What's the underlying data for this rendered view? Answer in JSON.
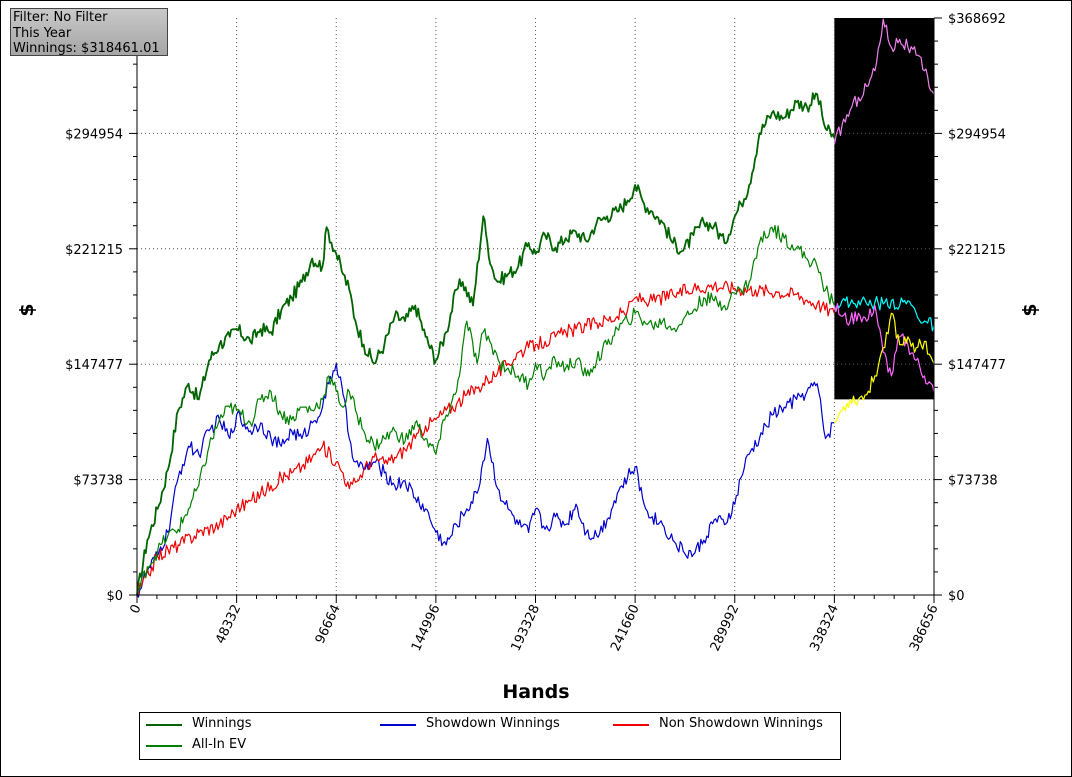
{
  "filter_box": {
    "line1": "Filter: No Filter",
    "line2": "This Year",
    "line3": "Winnings: $318461.01"
  },
  "chart_data": {
    "type": "line",
    "xlabel": "Hands",
    "ylabel": "$",
    "xlim": [
      0,
      386656
    ],
    "ylim": [
      0,
      368692
    ],
    "x_ticks": [
      "0",
      "48332",
      "96664",
      "144996",
      "193328",
      "241660",
      "289992",
      "338324",
      "386656"
    ],
    "y_ticks_left": [
      "$0",
      "$73738",
      "$147477",
      "$221215",
      "$294954"
    ],
    "y_ticks_right": [
      "$0",
      "$73738",
      "$147477",
      "$221215",
      "$294954",
      "$368692"
    ],
    "grid": "dotted",
    "legend_position": "bottom",
    "highlight_region": {
      "x_start": 338324,
      "x_end": 386656,
      "y_top": 368692,
      "y_bottom": 125000,
      "color": "#000000"
    },
    "series": [
      {
        "name": "Winnings",
        "color": "#006400",
        "x": [
          0,
          5000,
          10000,
          15000,
          20000,
          25000,
          30000,
          35000,
          40000,
          45000,
          48332,
          55000,
          60000,
          65000,
          70000,
          75000,
          80000,
          85000,
          90000,
          92000,
          96664,
          100000,
          103000,
          106000,
          110000,
          115000,
          120000,
          125000,
          130000,
          135000,
          140000,
          144996,
          150000,
          155000,
          158000,
          163000,
          168000,
          170000,
          172000,
          175000,
          180000,
          185000,
          190000,
          193328,
          198000,
          203000,
          208000,
          213000,
          218000,
          223000,
          228000,
          233000,
          238000,
          241660,
          246000,
          250000,
          255000,
          260000,
          265000,
          270000,
          275000,
          280000,
          285000,
          289992,
          293000,
          297000,
          302000,
          308000,
          314000,
          320000,
          325000,
          330000,
          334000,
          338324
        ],
        "values": [
          0,
          35000,
          55000,
          80000,
          118000,
          135000,
          125000,
          150000,
          160000,
          165000,
          170000,
          162000,
          170000,
          168000,
          182000,
          190000,
          200000,
          215000,
          210000,
          235000,
          218000,
          205000,
          195000,
          175000,
          160000,
          148000,
          160000,
          178000,
          175000,
          185000,
          165000,
          150000,
          168000,
          195000,
          200000,
          185000,
          242000,
          225000,
          210000,
          200000,
          205000,
          210000,
          225000,
          218000,
          230000,
          222000,
          228000,
          232000,
          226000,
          238000,
          242000,
          245000,
          252000,
          262000,
          250000,
          245000,
          238000,
          225000,
          220000,
          230000,
          238000,
          236000,
          225000,
          242000,
          250000,
          262000,
          295000,
          308000,
          305000,
          315000,
          312000,
          320000,
          298000,
          292000
        ]
      },
      {
        "name": "Showdown Winnings",
        "color": "#0000cd",
        "x": [
          0,
          5000,
          10000,
          15000,
          20000,
          25000,
          30000,
          35000,
          40000,
          45000,
          48332,
          55000,
          60000,
          65000,
          70000,
          75000,
          80000,
          85000,
          90000,
          93000,
          96664,
          100000,
          103000,
          106000,
          110000,
          115000,
          120000,
          125000,
          130000,
          135000,
          140000,
          144996,
          150000,
          155000,
          160000,
          165000,
          170000,
          175000,
          180000,
          185000,
          190000,
          193328,
          198000,
          203000,
          208000,
          213000,
          218000,
          223000,
          228000,
          233000,
          238000,
          241660,
          246000,
          250000,
          255000,
          260000,
          265000,
          270000,
          275000,
          280000,
          285000,
          289992,
          293000,
          297000,
          302000,
          308000,
          314000,
          320000,
          325000,
          330000,
          334000,
          338324
        ],
        "values": [
          0,
          15000,
          25000,
          40000,
          75000,
          95000,
          90000,
          105000,
          112000,
          100000,
          115000,
          105000,
          110000,
          100000,
          95000,
          105000,
          100000,
          110000,
          120000,
          135000,
          148000,
          128000,
          100000,
          85000,
          80000,
          85000,
          78000,
          70000,
          73000,
          62000,
          55000,
          40000,
          32000,
          45000,
          55000,
          65000,
          100000,
          68000,
          55000,
          45000,
          40000,
          55000,
          42000,
          50000,
          45000,
          58000,
          40000,
          38000,
          48000,
          65000,
          75000,
          82000,
          58000,
          50000,
          45000,
          35000,
          28000,
          26000,
          35000,
          48000,
          45000,
          58000,
          75000,
          90000,
          100000,
          115000,
          120000,
          125000,
          130000,
          135000,
          100000,
          110000
        ]
      },
      {
        "name": "Non Showdown Winnings",
        "color": "#ee0000",
        "x": [
          0,
          10000,
          20000,
          30000,
          40000,
          48332,
          55000,
          60000,
          65000,
          70000,
          75000,
          80000,
          85000,
          90000,
          96664,
          100000,
          103000,
          106000,
          110000,
          115000,
          120000,
          125000,
          130000,
          135000,
          140000,
          144996,
          150000,
          155000,
          160000,
          165000,
          170000,
          175000,
          180000,
          185000,
          190000,
          193328,
          198000,
          203000,
          208000,
          213000,
          218000,
          223000,
          228000,
          233000,
          238000,
          241660,
          250000,
          260000,
          270000,
          280000,
          289992,
          300000,
          310000,
          320000,
          330000,
          338324
        ],
        "values": [
          0,
          25000,
          32000,
          40000,
          45000,
          55000,
          60000,
          65000,
          70000,
          75000,
          78000,
          82000,
          88000,
          95000,
          85000,
          78000,
          68000,
          72000,
          80000,
          88000,
          84000,
          88000,
          93000,
          100000,
          108000,
          112000,
          118000,
          122000,
          128000,
          132000,
          138000,
          142000,
          148000,
          155000,
          158000,
          160000,
          162000,
          165000,
          168000,
          170000,
          172000,
          174000,
          176000,
          178000,
          182000,
          190000,
          188000,
          192000,
          196000,
          198000,
          196000,
          195000,
          194000,
          192000,
          186000,
          180000
        ]
      },
      {
        "name": "All-In EV",
        "color": "#008000",
        "x": [
          0,
          5000,
          10000,
          15000,
          20000,
          25000,
          30000,
          35000,
          40000,
          45000,
          48332,
          55000,
          60000,
          65000,
          70000,
          75000,
          80000,
          85000,
          90000,
          93000,
          96664,
          100000,
          103000,
          106000,
          110000,
          115000,
          120000,
          125000,
          130000,
          135000,
          140000,
          144996,
          150000,
          155000,
          160000,
          165000,
          168000,
          172000,
          176000,
          180000,
          185000,
          190000,
          193328,
          198000,
          203000,
          208000,
          213000,
          218000,
          223000,
          228000,
          233000,
          238000,
          241660,
          246000,
          250000,
          255000,
          260000,
          265000,
          270000,
          275000,
          280000,
          285000,
          289992,
          293000,
          297000,
          302000,
          308000,
          314000,
          320000,
          325000,
          330000,
          334000,
          338324
        ],
        "values": [
          0,
          18000,
          28000,
          38000,
          42000,
          55000,
          70000,
          95000,
          112000,
          120000,
          118000,
          110000,
          125000,
          130000,
          115000,
          112000,
          120000,
          118000,
          125000,
          140000,
          130000,
          120000,
          130000,
          118000,
          105000,
          95000,
          100000,
          105000,
          98000,
          110000,
          100000,
          90000,
          115000,
          130000,
          175000,
          148000,
          168000,
          160000,
          148000,
          145000,
          140000,
          135000,
          148000,
          140000,
          150000,
          145000,
          150000,
          140000,
          150000,
          160000,
          170000,
          175000,
          180000,
          175000,
          172000,
          175000,
          170000,
          176000,
          182000,
          190000,
          188000,
          185000,
          193000,
          195000,
          200000,
          225000,
          235000,
          228000,
          222000,
          215000,
          210000,
          195000,
          185000
        ]
      },
      {
        "name": "",
        "color": "#ee82ee",
        "x": [
          338324,
          342000,
          346000,
          350000,
          354000,
          358000,
          362000,
          366000,
          370000,
          374000,
          378000,
          382000,
          386656
        ],
        "values": [
          288000,
          300000,
          310000,
          318000,
          325000,
          335000,
          368000,
          350000,
          355000,
          350000,
          345000,
          335000,
          320000
        ]
      },
      {
        "name": "",
        "color": "#00ffff",
        "x": [
          338324,
          342000,
          346000,
          350000,
          354000,
          358000,
          362000,
          366000,
          370000,
          374000,
          378000,
          382000,
          386656
        ],
        "values": [
          185000,
          188000,
          186000,
          188000,
          186000,
          187000,
          186000,
          188000,
          185000,
          188000,
          180000,
          175000,
          172000
        ]
      },
      {
        "name": "",
        "color": "#ff66ff",
        "x": [
          338324,
          342000,
          346000,
          350000,
          354000,
          358000,
          362000,
          366000,
          370000,
          374000,
          378000,
          382000,
          386656
        ],
        "values": [
          185000,
          178000,
          175000,
          180000,
          175000,
          185000,
          155000,
          140000,
          165000,
          160000,
          150000,
          140000,
          130000
        ]
      },
      {
        "name": "",
        "color": "#ffff00",
        "x": [
          338324,
          342000,
          346000,
          350000,
          354000,
          358000,
          362000,
          366000,
          370000,
          374000,
          378000,
          382000,
          386656
        ],
        "values": [
          110000,
          118000,
          125000,
          125000,
          128000,
          140000,
          158000,
          180000,
          160000,
          165000,
          158000,
          162000,
          148000
        ]
      }
    ]
  }
}
